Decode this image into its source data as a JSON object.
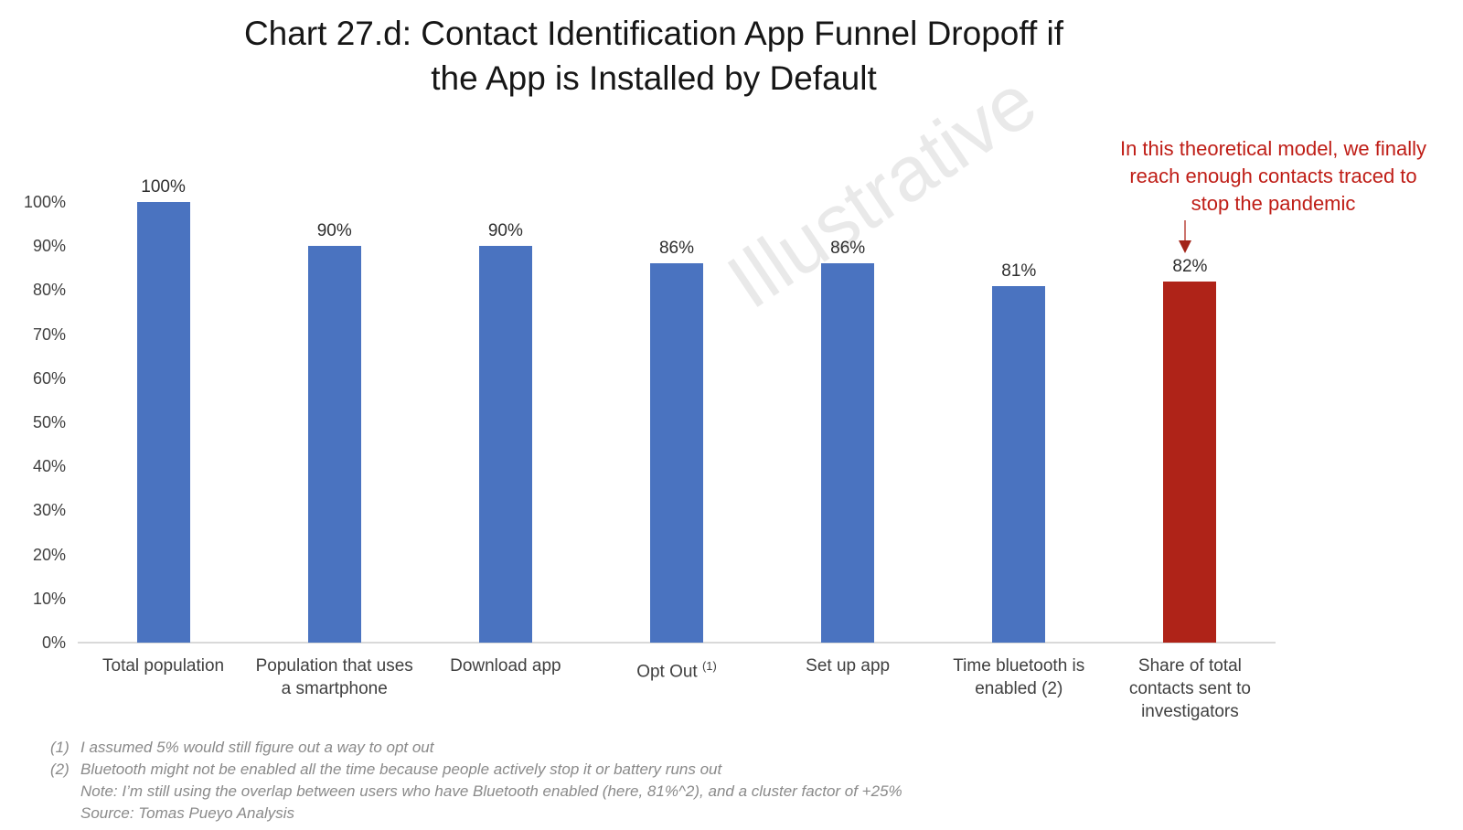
{
  "page": {
    "title_line1": "Chart 27.d: Contact Identification App Funnel Dropoff if",
    "title_line2": "the App is Installed by Default",
    "watermark": "Illustrative"
  },
  "annotation": {
    "lines": [
      "In this theoretical model, we finally",
      "reach enough contacts traced to",
      "stop the pandemic"
    ],
    "color": "#BF1D16",
    "arrow_color": "#A22318"
  },
  "chart_data": {
    "type": "bar",
    "title": "Chart 27.d: Contact Identification App Funnel Dropoff if the App is Installed by Default",
    "categories": [
      "Total population",
      "Population that uses a smartphone",
      "Download app",
      "Opt Out (1)",
      "Set up app",
      "Time bluetooth is enabled (2)",
      "Share of total contacts sent to investigators"
    ],
    "values": [
      100,
      90,
      90,
      86,
      86,
      81,
      82
    ],
    "data_labels": [
      "100%",
      "90%",
      "90%",
      "86%",
      "86%",
      "81%",
      "82%"
    ],
    "xticks": [
      {
        "lines": [
          "Total population"
        ]
      },
      {
        "lines": [
          "Population that uses",
          "a smartphone"
        ]
      },
      {
        "lines": [
          "Download app"
        ]
      },
      {
        "lines": [
          "Opt Out"
        ],
        "sup": "(1)"
      },
      {
        "lines": [
          "Set up app"
        ]
      },
      {
        "lines": [
          "Time bluetooth is",
          "enabled (2)"
        ]
      },
      {
        "lines": [
          "Share of total",
          "contacts sent to",
          "investigators"
        ]
      }
    ],
    "bar_color": "#4A73C0",
    "highlight_index": 6,
    "highlight_color": "#AF2318",
    "ylabel": "",
    "ylim": [
      0,
      100
    ],
    "ytick_step": 10,
    "ytick_labels": [
      "0%",
      "10%",
      "20%",
      "30%",
      "40%",
      "50%",
      "60%",
      "70%",
      "80%",
      "90%",
      "100%"
    ],
    "grid": false,
    "legend": false
  },
  "footnotes": [
    {
      "marker": "(1)",
      "text": "I assumed 5% would still figure out a way to opt out"
    },
    {
      "marker": "(2)",
      "text": "Bluetooth might not be enabled all the time because people actively stop it or battery runs out"
    },
    {
      "marker": "",
      "text": "Note: I’m still using the overlap between users who have Bluetooth enabled (here, 81%^2), and a cluster factor of +25%"
    },
    {
      "marker": "",
      "text": "Source: Tomas Pueyo Analysis"
    }
  ]
}
